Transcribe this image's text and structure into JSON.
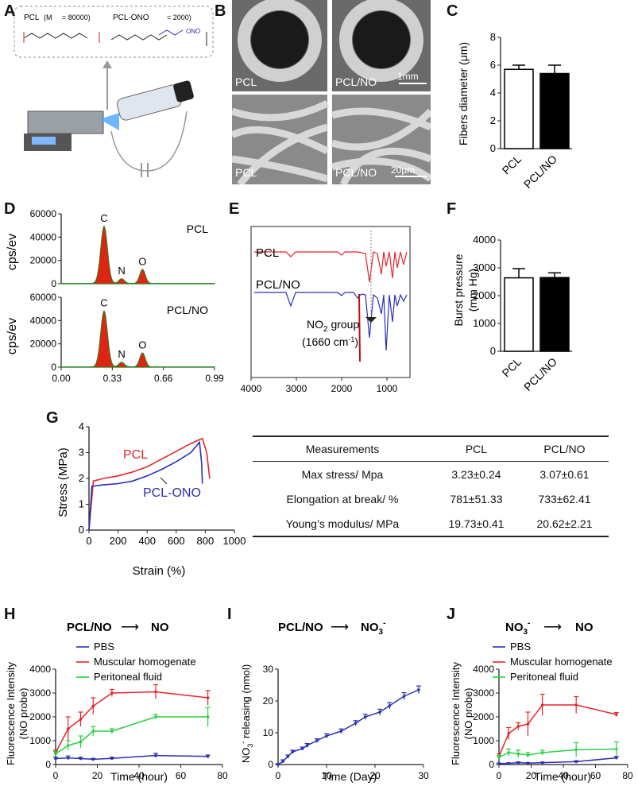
{
  "panels": {
    "A": "A",
    "B": "B",
    "C": "C",
    "D": "D",
    "E": "E",
    "F": "F",
    "G": "G",
    "H": "H",
    "I": "I",
    "J": "J"
  },
  "colors": {
    "red": "#e8232a",
    "blue": "#2b2fb5",
    "green": "#27d03f",
    "fill_red": "#e02414",
    "sem_bg": "#6a6a6a"
  },
  "panelA": {
    "pcl_label": "PCL",
    "pcl_mn": "(M",
    "pcl_mn_val": " = 80000)",
    "no_label": "PCL-ONO",
    "no_mn": " = 2000)",
    "no_group": "ONO"
  },
  "panelB": {
    "tl": "PCL",
    "tr": "PCL/NO",
    "scale1": "1mm",
    "bl": "PCL",
    "br": "PCL/NO",
    "scale2": "20µm"
  },
  "chart_data": [
    {
      "id": "C",
      "type": "bar",
      "categories": [
        "PCL",
        "PCL/NO"
      ],
      "values": [
        5.7,
        5.4
      ],
      "errors": [
        0.3,
        0.6
      ],
      "ylabel": "Fibers diameter (μm)",
      "ylim": [
        0,
        8
      ],
      "yticks": [
        "0",
        "2",
        "4",
        "6",
        "8"
      ],
      "fills": [
        "#ffffff",
        "#000000"
      ]
    },
    {
      "id": "D",
      "type": "area",
      "title_top": "PCL",
      "title_bottom": "PCL/NO",
      "ylabel": "cps/ev",
      "ylim": [
        0,
        60000
      ],
      "yticks": [
        "0",
        "20000",
        "40000",
        "60000"
      ],
      "xticks": [
        "0.00",
        "0.33",
        "0.66",
        "0.99"
      ],
      "peaks_top": [
        {
          "label": "C",
          "x": 0.277,
          "y": 49000
        },
        {
          "label": "N",
          "x": 0.39,
          "y": 4000
        },
        {
          "label": "O",
          "x": 0.525,
          "y": 12000
        }
      ],
      "peaks_bottom": [
        {
          "label": "C",
          "x": 0.277,
          "y": 48000
        },
        {
          "label": "N",
          "x": 0.39,
          "y": 4000
        },
        {
          "label": "O",
          "x": 0.525,
          "y": 12000
        }
      ]
    },
    {
      "id": "E",
      "type": "line",
      "series": [
        "PCL",
        "PCL/NO"
      ],
      "xticks": [
        "4000",
        "3000",
        "2000",
        "1000"
      ],
      "annotation": "NO",
      "annotation_sub": "2",
      "annotation_suffix": " group",
      "annotation2": "(1660 cm",
      "annotation2_sup": "-1",
      "annotation2_end": ")"
    },
    {
      "id": "F",
      "type": "bar",
      "categories": [
        "PCL",
        "PCL/NO"
      ],
      "values": [
        2640,
        2650
      ],
      "errors": [
        330,
        170
      ],
      "ylabel_line1": "Burst pressure",
      "ylabel_line2": "(mm Hg)",
      "ylim": [
        0,
        4000
      ],
      "yticks": [
        "0",
        "1000",
        "2000",
        "3000",
        "4000"
      ],
      "fills": [
        "#ffffff",
        "#000000"
      ]
    },
    {
      "id": "G",
      "type": "line",
      "xlabel": "Strain (%)",
      "ylabel": "Stress (MPa)",
      "xlim": [
        0,
        1000
      ],
      "ylim": [
        0,
        4
      ],
      "xticks": [
        "0",
        "200",
        "400",
        "600",
        "800",
        "1000"
      ],
      "yticks": [
        "0",
        "1",
        "2",
        "3",
        "4"
      ],
      "series": [
        {
          "name": "PCL",
          "points": [
            [
              0,
              0
            ],
            [
              30,
              1.9
            ],
            [
              100,
              2.0
            ],
            [
              200,
              2.1
            ],
            [
              300,
              2.25
            ],
            [
              400,
              2.45
            ],
            [
              500,
              2.75
            ],
            [
              600,
              3.05
            ],
            [
              700,
              3.35
            ],
            [
              780,
              3.55
            ],
            [
              810,
              3.0
            ],
            [
              830,
              2.0
            ]
          ]
        },
        {
          "name": "PCL-ONO",
          "points": [
            [
              0,
              0
            ],
            [
              20,
              1.7
            ],
            [
              100,
              1.75
            ],
            [
              200,
              1.8
            ],
            [
              300,
              1.9
            ],
            [
              400,
              2.1
            ],
            [
              500,
              2.35
            ],
            [
              600,
              2.65
            ],
            [
              700,
              3.0
            ],
            [
              760,
              3.4
            ],
            [
              775,
              2.6
            ],
            [
              780,
              1.8
            ]
          ]
        }
      ]
    },
    {
      "id": "H",
      "type": "line",
      "title_left": "PCL/NO",
      "title_right": "NO",
      "xlabel": "Time (hour)",
      "ylabel_line1": "Fluorescence Intensity",
      "ylabel_line2": "(NO probe)",
      "xlim": [
        0,
        80
      ],
      "ylim": [
        0,
        4000
      ],
      "xticks": [
        "0",
        "20",
        "40",
        "60",
        "80"
      ],
      "yticks": [
        "0",
        "1000",
        "2000",
        "3000",
        "4000"
      ],
      "series": [
        {
          "name": "PBS",
          "color": "#2b2fb5",
          "x": [
            0,
            6,
            12,
            18,
            27,
            48,
            73
          ],
          "y": [
            250,
            280,
            250,
            220,
            260,
            380,
            340
          ],
          "err": [
            60,
            80,
            60,
            40,
            50,
            90,
            60
          ]
        },
        {
          "name": "Muscular homogenate",
          "color": "#e8232a",
          "x": [
            0,
            6,
            12,
            18,
            27,
            48,
            73
          ],
          "y": [
            500,
            1500,
            1900,
            2450,
            3000,
            3050,
            2800
          ],
          "err": [
            100,
            500,
            300,
            350,
            150,
            300,
            300
          ]
        },
        {
          "name": "Peritoneal fluid",
          "color": "#27d03f",
          "x": [
            0,
            6,
            12,
            18,
            27,
            48,
            73
          ],
          "y": [
            450,
            800,
            950,
            1400,
            1400,
            2000,
            2000
          ],
          "err": [
            100,
            200,
            250,
            200,
            100,
            100,
            400
          ]
        }
      ]
    },
    {
      "id": "I",
      "type": "line",
      "title_left": "PCL/NO",
      "title_right": "NO",
      "title_right_sub": "3",
      "title_right_sup": "-",
      "xlabel": "Time (Day)",
      "ylabel": "NO3- releasing (nmol)",
      "ylabel_pre": "NO",
      "ylabel_sub": "3",
      "ylabel_sup": "-",
      "ylabel_post": " releasing (nmol)",
      "xlim": [
        0,
        30
      ],
      "ylim": [
        0,
        30
      ],
      "xticks": [
        "0",
        "10",
        "20",
        "30"
      ],
      "yticks": [
        "0",
        "10",
        "20",
        "30"
      ],
      "series": [
        {
          "name": "NO3",
          "color": "#2b2fb5",
          "x": [
            0,
            1,
            2,
            3,
            5,
            6,
            8,
            10,
            13,
            16,
            18,
            21,
            23,
            26,
            29
          ],
          "y": [
            0,
            1,
            2.5,
            4,
            5,
            6,
            7.5,
            9,
            10.5,
            13,
            15,
            16.5,
            18.5,
            21.5,
            23.5
          ],
          "err": [
            0.3,
            0.5,
            0.5,
            0.5,
            0.5,
            0.6,
            0.6,
            0.7,
            0.7,
            0.8,
            0.8,
            0.9,
            1,
            1.1,
            1.2
          ]
        }
      ]
    },
    {
      "id": "J",
      "type": "line",
      "title_left": "NO",
      "title_left_sub": "3",
      "title_left_sup": "-",
      "title_right": "NO",
      "xlabel": "Time (hour)",
      "ylabel_line1": "Fluorescence Intensity",
      "ylabel_line2": "(NO probe)",
      "xlim": [
        0,
        80
      ],
      "ylim": [
        0,
        4000
      ],
      "xticks": [
        "0",
        "20",
        "40",
        "60",
        "80"
      ],
      "yticks": [
        "0",
        "1000",
        "2000",
        "3000",
        "4000"
      ],
      "series": [
        {
          "name": "PBS",
          "color": "#2b2fb5",
          "x": [
            0,
            6,
            12,
            18,
            27,
            48,
            73
          ],
          "y": [
            40,
            50,
            80,
            60,
            80,
            120,
            280
          ],
          "err": [
            20,
            20,
            30,
            20,
            20,
            40,
            60
          ]
        },
        {
          "name": "Muscular homogenate",
          "color": "#e8232a",
          "x": [
            0,
            6,
            12,
            18,
            27,
            48,
            73
          ],
          "y": [
            350,
            1300,
            1600,
            1700,
            2500,
            2500,
            2100
          ],
          "err": [
            100,
            250,
            150,
            500,
            450,
            350,
            80
          ]
        },
        {
          "name": "Peritoneal fluid",
          "color": "#27d03f",
          "x": [
            0,
            6,
            12,
            18,
            27,
            48,
            73
          ],
          "y": [
            300,
            500,
            450,
            400,
            500,
            620,
            650
          ],
          "err": [
            80,
            150,
            150,
            100,
            100,
            300,
            300
          ]
        }
      ]
    }
  ],
  "table": {
    "headers": [
      "Measurements",
      "PCL",
      "PCL/NO"
    ],
    "rows": [
      [
        "Max stress/ Mpa",
        "3.23±0.24",
        "3.07±0.61"
      ],
      [
        "Elongation at break/ %",
        "781±51.33",
        "733±62.41"
      ],
      [
        "Young’s modulus/ MPa",
        "19.73±0.41",
        "20.62±2.21"
      ]
    ]
  }
}
